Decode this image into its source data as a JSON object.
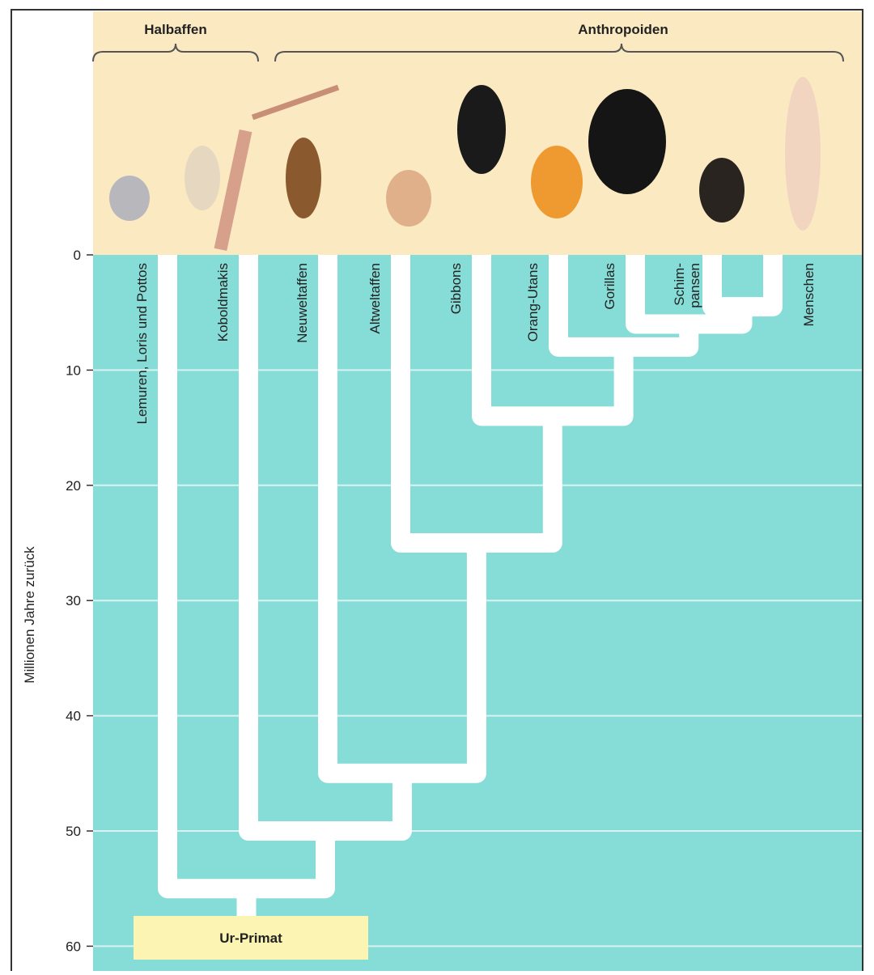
{
  "groups": [
    "Halbaffen",
    "Anthropoiden"
  ],
  "axis": {
    "label": "Millionen Jahre zurück",
    "ylim": [
      0,
      62
    ],
    "yticks": [
      0,
      10,
      20,
      30,
      40,
      50,
      60
    ]
  },
  "leaves": [
    "Lemuren, Loris und Pottos",
    "Koboldmakis",
    "Neuweltaffen",
    "Altweltaffen",
    "Gibbons",
    "Orang-Utans",
    "Gorillas",
    [
      "Schim-",
      "pansen"
    ],
    "Menschen"
  ],
  "nodes": [
    55,
    50,
    45,
    25,
    14,
    8,
    6,
    4.5
  ],
  "root": "Ur-Primat"
}
